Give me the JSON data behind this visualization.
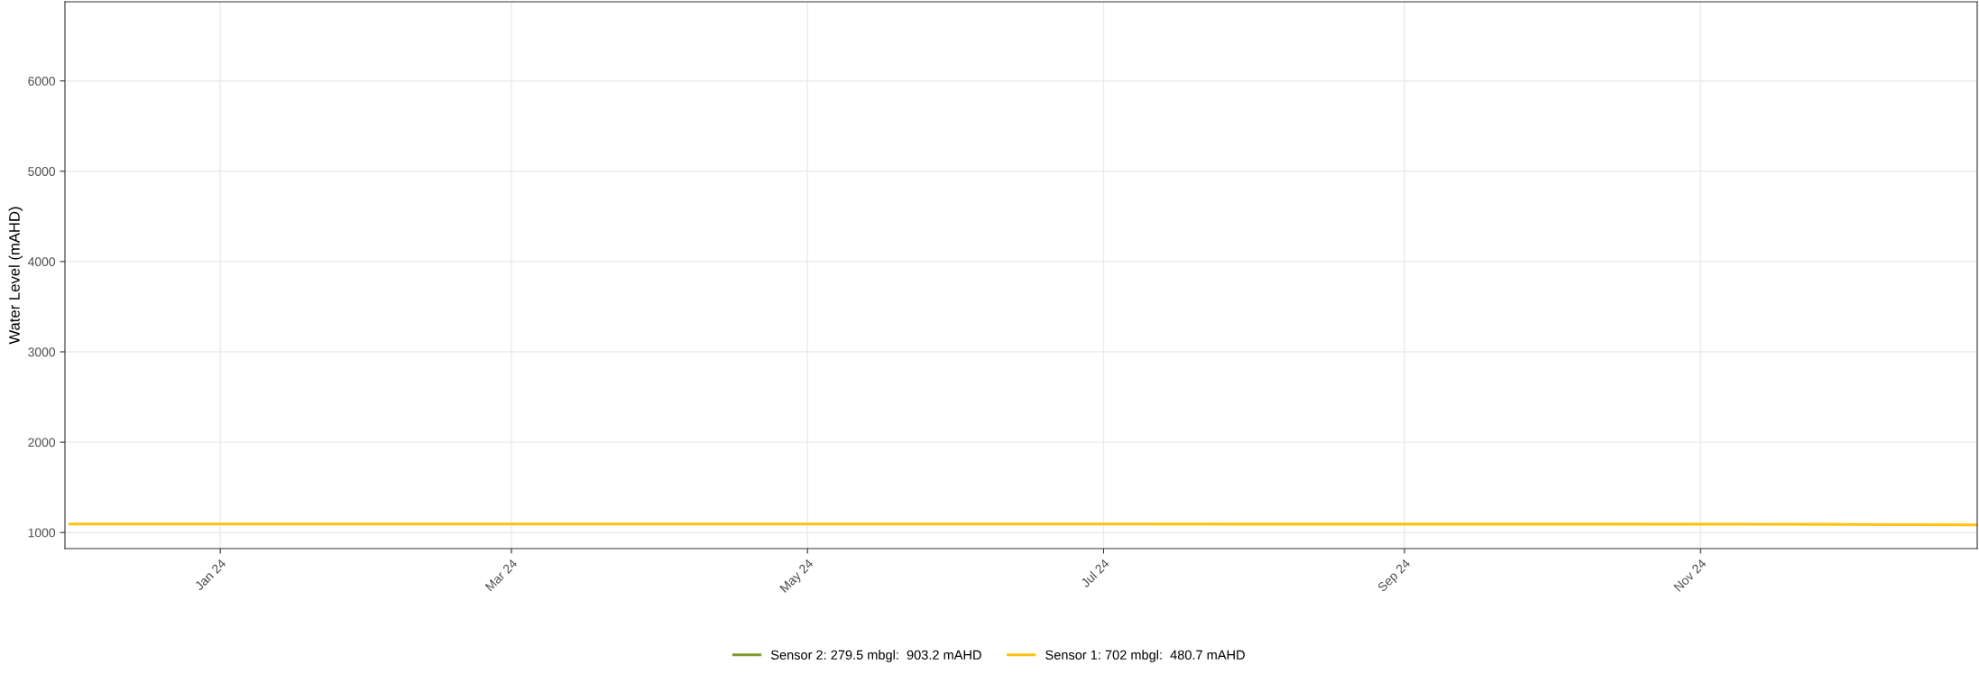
{
  "chart_data": {
    "type": "line",
    "ylabel": "Water Level (mAHD)",
    "x": [
      "2023-12-01",
      "2024-02-01",
      "2024-04-01",
      "2024-06-01",
      "2024-08-01",
      "2024-10-01",
      "2024-11-15",
      "2024-12-01",
      "2024-12-28"
    ],
    "series": [
      {
        "name": "Sensor 2: 279.5 mbgl:  903.2 mAHD",
        "color": "#7f9a2e",
        "values": [
          null,
          null,
          null,
          null,
          null,
          null,
          null,
          null,
          null
        ]
      },
      {
        "name": "Sensor 1: 702 mbgl:  480.7 mAHD",
        "color": "#ffc20e",
        "values": [
          1095,
          1094,
          1094,
          1094,
          1093,
          1093,
          1092,
          1090,
          1085
        ]
      }
    ],
    "xlim": [
      "2023-11-30",
      "2024-12-28"
    ],
    "xticks": [
      {
        "value": "2024-01-01",
        "label": "Jan 24"
      },
      {
        "value": "2024-03-01",
        "label": "Mar 24"
      },
      {
        "value": "2024-05-01",
        "label": "May 24"
      },
      {
        "value": "2024-07-01",
        "label": "Jul 24"
      },
      {
        "value": "2024-09-01",
        "label": "Sep 24"
      },
      {
        "value": "2024-11-01",
        "label": "Nov 24"
      }
    ],
    "ylim": [
      822,
      6876
    ],
    "yticks": [
      1000,
      2000,
      3000,
      4000,
      5000,
      6000
    ],
    "grid": true,
    "legend": "bottom",
    "line_style": "solid",
    "marker": "none"
  }
}
